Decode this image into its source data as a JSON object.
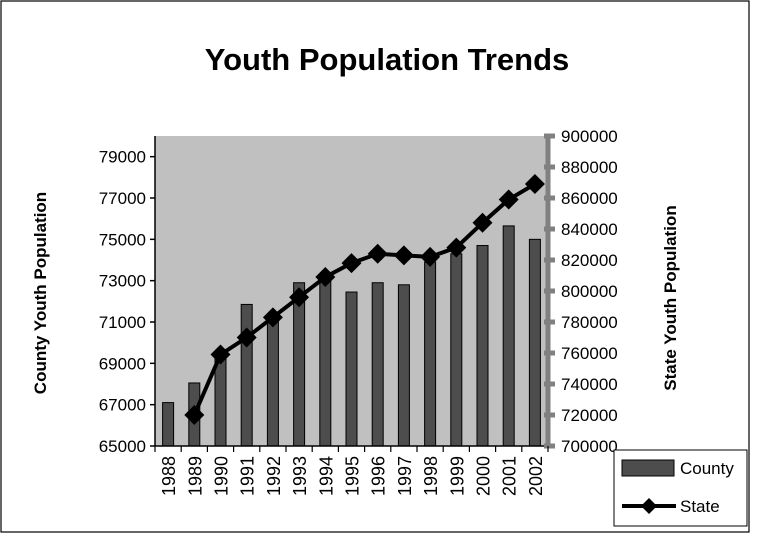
{
  "chart_data": {
    "type": "bar",
    "title": "Youth Population Trends",
    "xlabel": "",
    "categories": [
      "1988",
      "1989",
      "1990",
      "1991",
      "1992",
      "1993",
      "1994",
      "1995",
      "1996",
      "1997",
      "1998",
      "1999",
      "2000",
      "2001",
      "2002"
    ],
    "y_left": {
      "label": "County Youth Population",
      "range": [
        65000,
        80000
      ],
      "ticks": [
        65000,
        67000,
        69000,
        71000,
        73000,
        75000,
        77000,
        79000
      ]
    },
    "y_right": {
      "label": "State Youth Population",
      "range": [
        700000,
        900000
      ],
      "ticks": [
        700000,
        720000,
        740000,
        760000,
        780000,
        800000,
        820000,
        840000,
        860000,
        880000,
        900000
      ]
    },
    "series": [
      {
        "name": "County",
        "type": "bar",
        "axis": "left",
        "color": "#4d4d4d",
        "values": [
          67100,
          68050,
          69600,
          71850,
          71350,
          72900,
          73100,
          72450,
          72900,
          72800,
          73900,
          74300,
          74700,
          75650,
          75000
        ]
      },
      {
        "name": "State",
        "type": "line",
        "axis": "right",
        "color": "#000000",
        "marker": "diamond",
        "values": [
          null,
          720000,
          759000,
          770000,
          783000,
          796000,
          809000,
          818000,
          824000,
          823000,
          822000,
          828000,
          844000,
          859000,
          869000
        ]
      }
    ],
    "plot_background": "#c0c0c0",
    "legend_position": "bottom-right"
  }
}
